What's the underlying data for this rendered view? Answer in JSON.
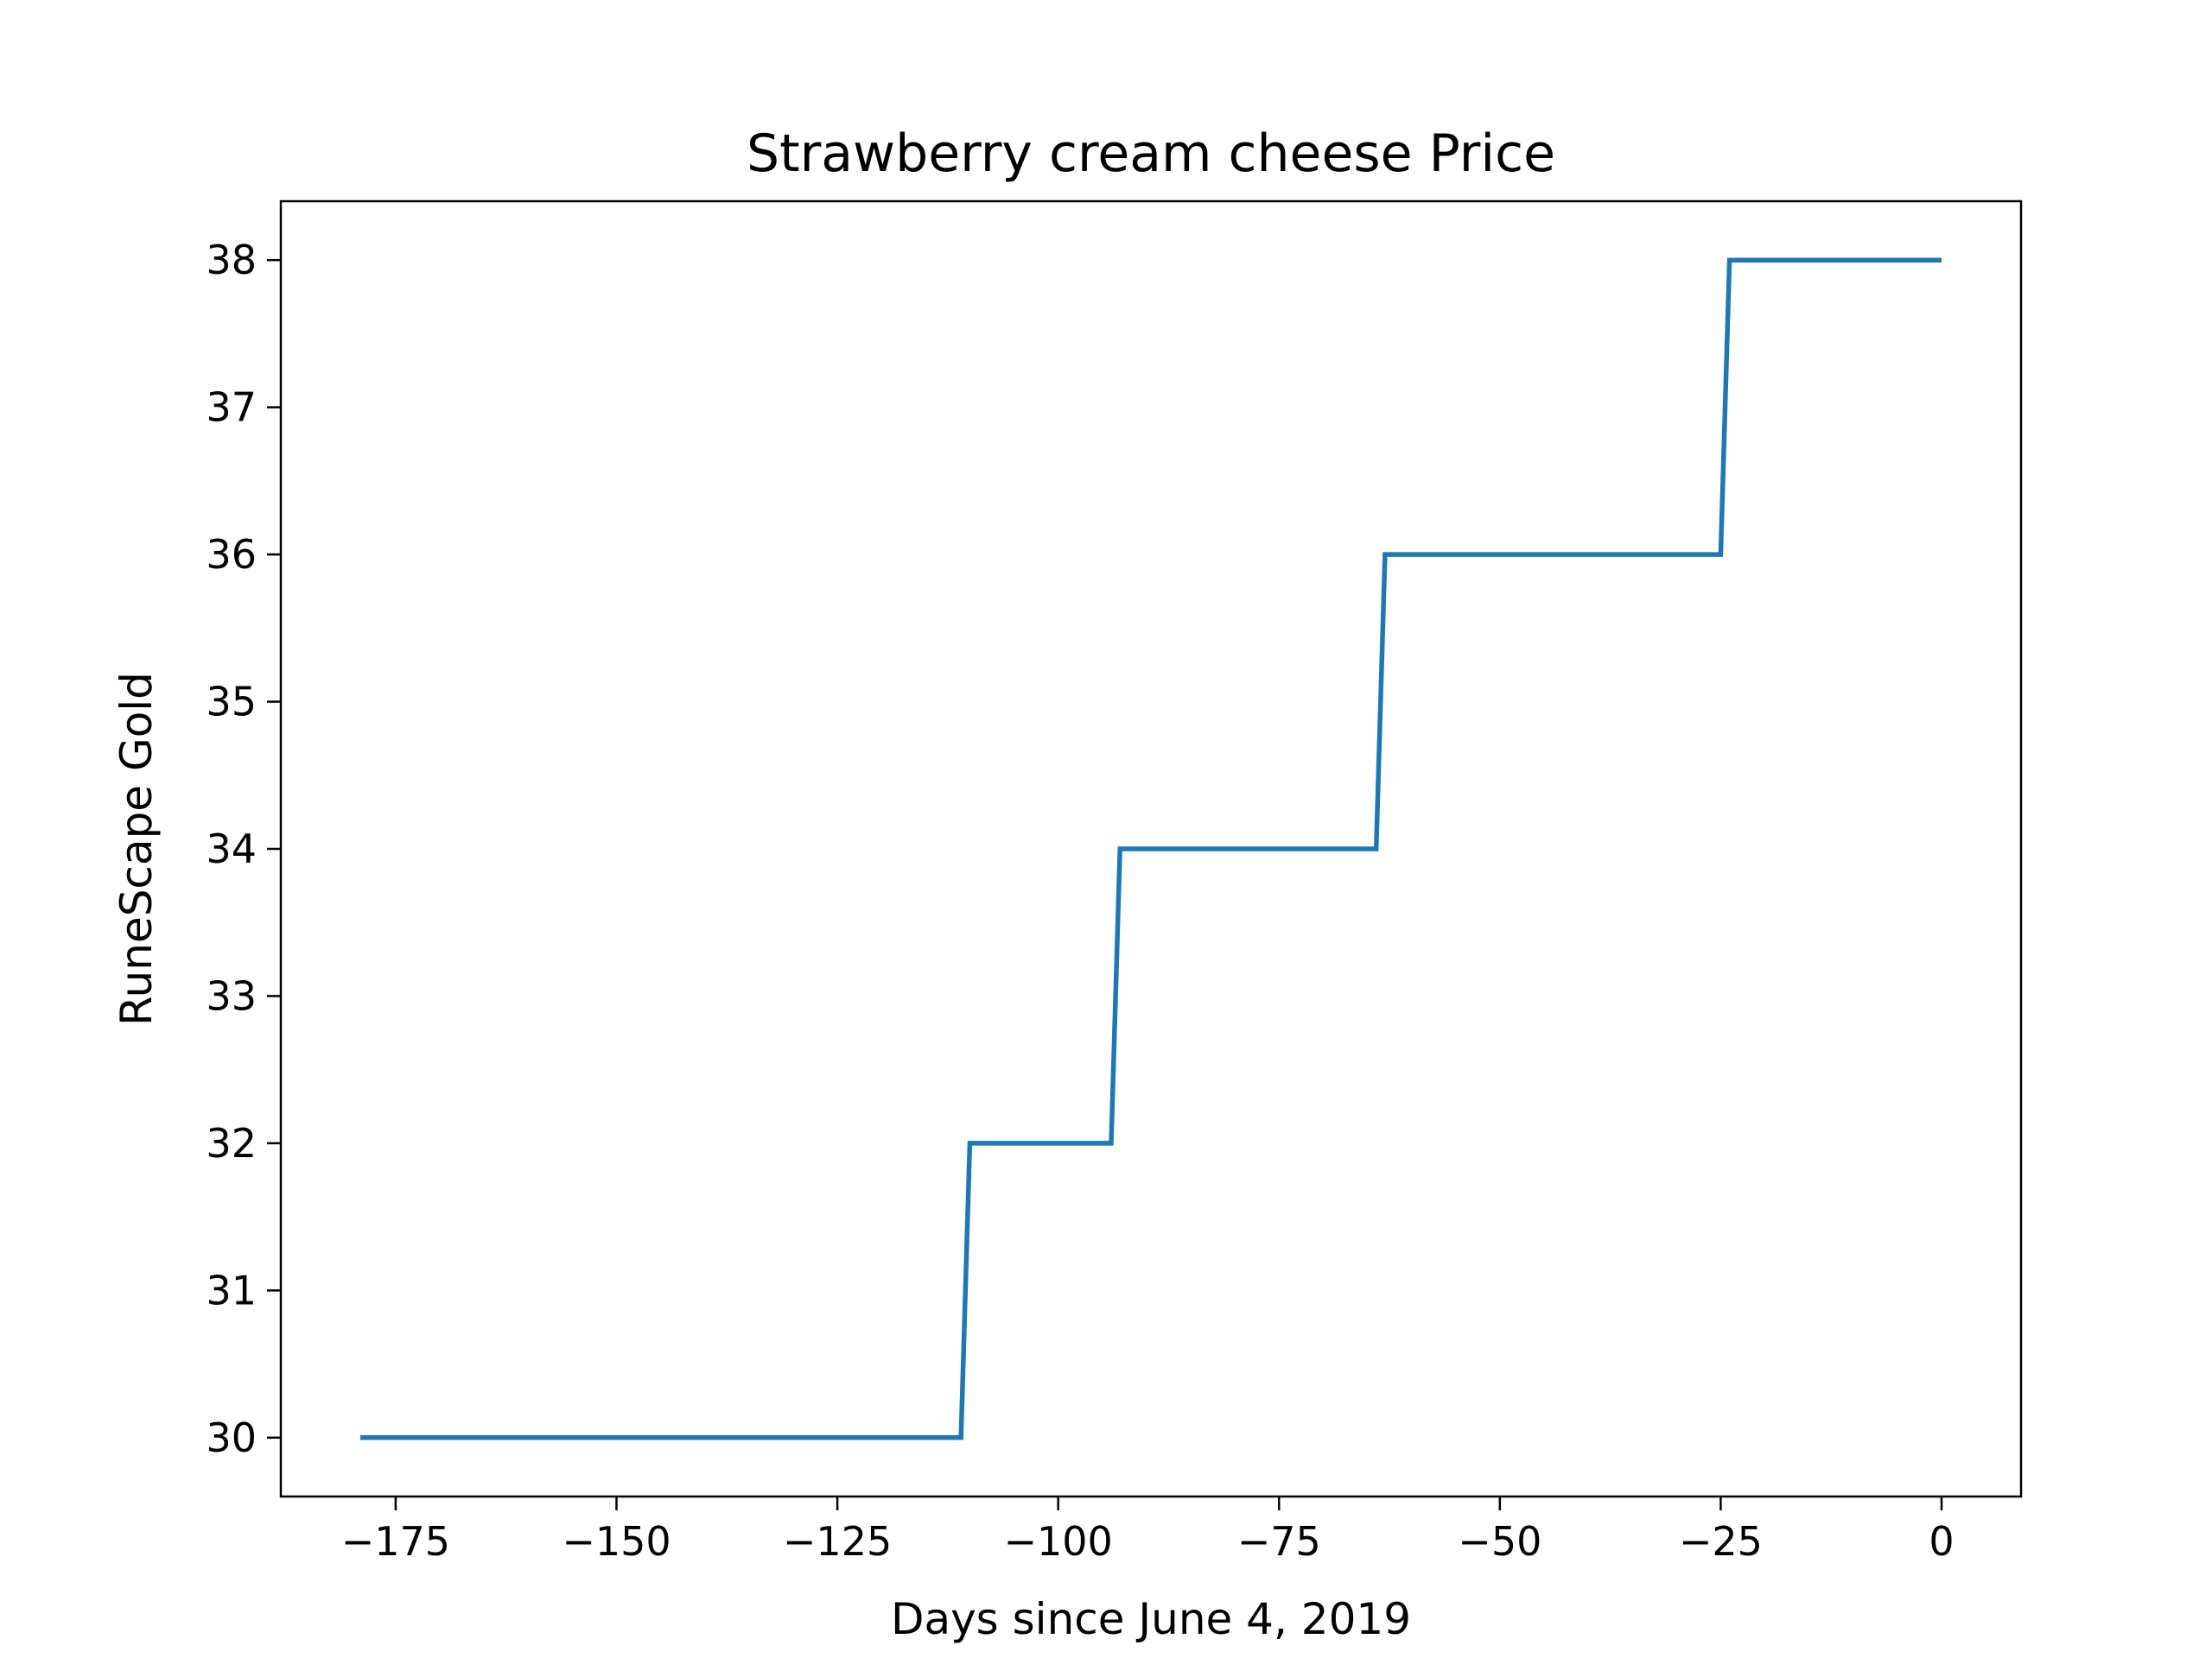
{
  "chart_data": {
    "type": "line",
    "title": "Strawberry cream cheese Price",
    "xlabel": "Days since June 4, 2019",
    "ylabel": "RuneScape Gold",
    "xlim": [
      -188,
      9
    ],
    "ylim": [
      29.6,
      38.4
    ],
    "xticks": [
      -175,
      -150,
      -125,
      -100,
      -75,
      -50,
      -25,
      0
    ],
    "xtick_labels": [
      "−175",
      "−150",
      "−125",
      "−100",
      "−75",
      "−50",
      "−25",
      "0"
    ],
    "yticks": [
      30,
      31,
      32,
      33,
      34,
      35,
      36,
      37,
      38
    ],
    "ytick_labels": [
      "30",
      "31",
      "32",
      "33",
      "34",
      "35",
      "36",
      "37",
      "38"
    ],
    "grid": false,
    "series": [
      {
        "color": "#1f77b4",
        "x": [
          -179,
          -111,
          -110,
          -94,
          -93,
          -64,
          -63,
          -25,
          -24,
          0
        ],
        "y": [
          30,
          30,
          32,
          32,
          34,
          34,
          36,
          36,
          38,
          38
        ]
      }
    ]
  }
}
